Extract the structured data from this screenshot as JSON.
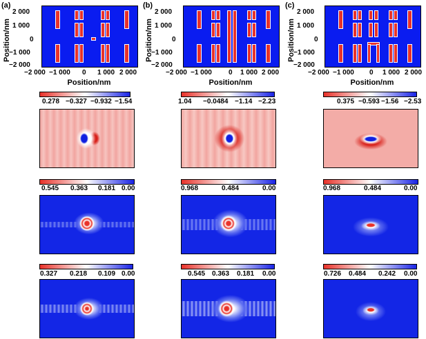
{
  "panel_labels": [
    "(a)",
    "(b)",
    "(c)"
  ],
  "layout_plots": {
    "x_axis_title": "Position/nm",
    "y_axis_title": "Position/nm",
    "x_ticks": [
      "−2 000",
      "−1 000",
      "0",
      "1 000",
      "2 000"
    ],
    "y_ticks": [
      "2 000",
      "1 000",
      "0",
      "−1 000",
      "−2 000"
    ],
    "rod_color": "#e8322a",
    "background_color": "#0a1cf0"
  },
  "colorbars": {
    "row1": {
      "a": [
        "0.278",
        "−0.327",
        "−0.932",
        "−1.54"
      ],
      "b": [
        "1.04",
        "−0.0484",
        "−1.14",
        "−2.23"
      ],
      "c": [
        "0.375",
        "−0.593",
        "−1.56",
        "−2.53"
      ]
    },
    "row2": {
      "a": [
        "0.545",
        "0.363",
        "0.181",
        "0.00"
      ],
      "b": [
        "0.968",
        "0.484",
        "0.00"
      ],
      "c": [
        "0.968",
        "0.484",
        "0.00"
      ]
    },
    "row3": {
      "a": [
        "0.327",
        "0.218",
        "0.109",
        "0.00"
      ],
      "b": [
        "0.545",
        "0.363",
        "0.181",
        "0.00"
      ],
      "c": [
        "0.726",
        "0.484",
        "0.242",
        "0.00"
      ]
    }
  },
  "colors": {
    "scale_low": "#e8322a",
    "scale_mid": "#ffffff",
    "scale_high": "#1a24e6"
  }
}
